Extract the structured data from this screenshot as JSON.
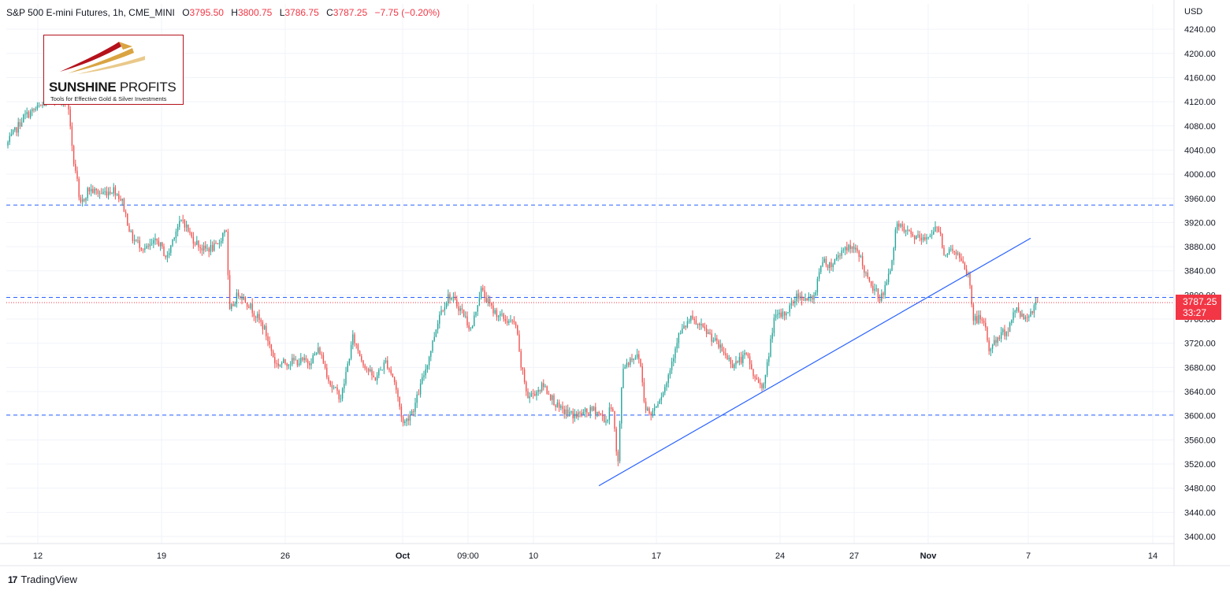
{
  "header": {
    "title": "S&P 500 E-mini Futures, 1h, CME_MINI",
    "open_label": "O",
    "open": "3795.50",
    "high_label": "H",
    "high": "3800.75",
    "low_label": "L",
    "low": "3786.75",
    "close_label": "C",
    "close": "3787.25",
    "change": "−7.75 (−0.20%)"
  },
  "logo": {
    "name_bold": "SUNSHINE",
    "name_regular": "PROFITS",
    "tagline": "Tools for Effective Gold & Silver Investments"
  },
  "price_axis": {
    "currency": "USD"
  },
  "last_price": {
    "value": "3787.25",
    "countdown": "33:27"
  },
  "footer": {
    "brand": "TradingView",
    "brand_mark": "17"
  },
  "colors": {
    "up": "#26a69a",
    "down": "#ef5350",
    "support_line": "#2962ff",
    "trendline": "#2962ff",
    "last_price": "#f23645",
    "logo_border": "#b5121b"
  },
  "chart_data": {
    "type": "candlestick",
    "interval": "1h",
    "y_axis": {
      "ticks": [
        3400,
        3440,
        3480,
        3520,
        3560,
        3600,
        3640,
        3680,
        3720,
        3760,
        3800,
        3840,
        3880,
        3920,
        3960,
        4000,
        4040,
        4080,
        4120,
        4160,
        4200,
        4240
      ],
      "tick_labels": [
        "3400.00",
        "3440.00",
        "3480.00",
        "3520.00",
        "3560.00",
        "3600.00",
        "3640.00",
        "3680.00",
        "3720.00",
        "3760.00",
        "3800.00",
        "3840.00",
        "3880.00",
        "3920.00",
        "3960.00",
        "4000.00",
        "4040.00",
        "4080.00",
        "4120.00",
        "4160.00",
        "4200.00",
        "4240.00"
      ],
      "range": [
        3385,
        4255
      ]
    },
    "x_axis": {
      "ticks": [
        {
          "label": "12",
          "bold": false
        },
        {
          "label": "19",
          "bold": false
        },
        {
          "label": "26",
          "bold": false
        },
        {
          "label": "Oct",
          "bold": true
        },
        {
          "label": "09:00",
          "bold": false
        },
        {
          "label": "10",
          "bold": false
        },
        {
          "label": "17",
          "bold": false
        },
        {
          "label": "24",
          "bold": false
        },
        {
          "label": "27",
          "bold": false
        },
        {
          "label": "Nov",
          "bold": true
        },
        {
          "label": "7",
          "bold": false
        },
        {
          "label": "14",
          "bold": false
        }
      ]
    },
    "horizontal_levels": [
      3949,
      3796,
      3601
    ],
    "trendline": {
      "from_price": 3484,
      "to_price": 3894
    },
    "price_path": [
      [
        0,
        4030
      ],
      [
        30,
        4095
      ],
      [
        55,
        4115
      ],
      [
        65,
        4125
      ],
      [
        75,
        4130
      ],
      [
        85,
        4115
      ],
      [
        88,
        4105
      ],
      [
        92,
        4030
      ],
      [
        97,
        4000
      ],
      [
        101,
        3945
      ],
      [
        112,
        3975
      ],
      [
        128,
        3968
      ],
      [
        145,
        3975
      ],
      [
        155,
        3955
      ],
      [
        167,
        3895
      ],
      [
        185,
        3875
      ],
      [
        200,
        3890
      ],
      [
        212,
        3860
      ],
      [
        222,
        3905
      ],
      [
        232,
        3925
      ],
      [
        243,
        3895
      ],
      [
        258,
        3875
      ],
      [
        276,
        3880
      ],
      [
        287,
        3915
      ],
      [
        291,
        3770
      ],
      [
        303,
        3805
      ],
      [
        318,
        3780
      ],
      [
        335,
        3745
      ],
      [
        350,
        3685
      ],
      [
        370,
        3690
      ],
      [
        393,
        3690
      ],
      [
        405,
        3710
      ],
      [
        420,
        3650
      ],
      [
        433,
        3630
      ],
      [
        448,
        3730
      ],
      [
        460,
        3690
      ],
      [
        475,
        3660
      ],
      [
        490,
        3690
      ],
      [
        500,
        3660
      ],
      [
        512,
        3585
      ],
      [
        526,
        3615
      ],
      [
        545,
        3700
      ],
      [
        558,
        3770
      ],
      [
        570,
        3800
      ],
      [
        588,
        3770
      ],
      [
        598,
        3740
      ],
      [
        610,
        3810
      ],
      [
        625,
        3775
      ],
      [
        640,
        3760
      ],
      [
        655,
        3750
      ],
      [
        660,
        3690
      ],
      [
        670,
        3630
      ],
      [
        690,
        3650
      ],
      [
        710,
        3610
      ],
      [
        730,
        3600
      ],
      [
        755,
        3610
      ],
      [
        770,
        3590
      ],
      [
        777,
        3625
      ],
      [
        784,
        3510
      ],
      [
        790,
        3680
      ],
      [
        805,
        3700
      ],
      [
        812,
        3695
      ],
      [
        818,
        3620
      ],
      [
        825,
        3600
      ],
      [
        845,
        3650
      ],
      [
        860,
        3730
      ],
      [
        876,
        3760
      ],
      [
        900,
        3735
      ],
      [
        918,
        3705
      ],
      [
        930,
        3685
      ],
      [
        948,
        3700
      ],
      [
        958,
        3660
      ],
      [
        970,
        3650
      ],
      [
        982,
        3760
      ],
      [
        997,
        3770
      ],
      [
        1012,
        3800
      ],
      [
        1032,
        3790
      ],
      [
        1042,
        3855
      ],
      [
        1055,
        3850
      ],
      [
        1072,
        3880
      ],
      [
        1090,
        3870
      ],
      [
        1102,
        3820
      ],
      [
        1118,
        3795
      ],
      [
        1128,
        3830
      ],
      [
        1138,
        3915
      ],
      [
        1155,
        3900
      ],
      [
        1172,
        3890
      ],
      [
        1182,
        3905
      ],
      [
        1192,
        3910
      ],
      [
        1198,
        3870
      ],
      [
        1212,
        3875
      ],
      [
        1225,
        3840
      ],
      [
        1230,
        3830
      ],
      [
        1235,
        3760
      ],
      [
        1248,
        3760
      ],
      [
        1255,
        3710
      ],
      [
        1268,
        3730
      ],
      [
        1280,
        3745
      ],
      [
        1290,
        3780
      ],
      [
        1300,
        3760
      ],
      [
        1312,
        3780
      ],
      [
        1318,
        3787
      ]
    ]
  }
}
